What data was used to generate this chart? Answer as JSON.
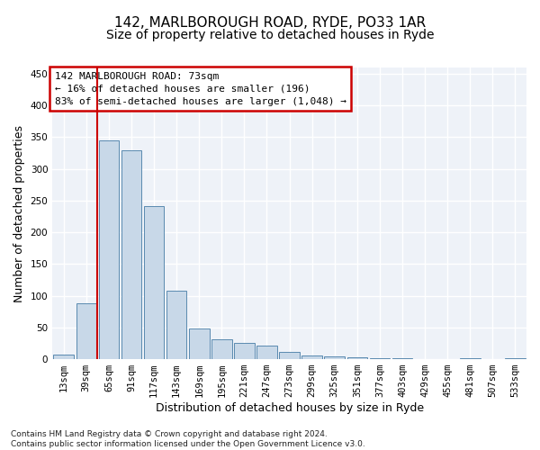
{
  "title_line1": "142, MARLBOROUGH ROAD, RYDE, PO33 1AR",
  "title_line2": "Size of property relative to detached houses in Ryde",
  "xlabel": "Distribution of detached houses by size in Ryde",
  "ylabel": "Number of detached properties",
  "footnote": "Contains HM Land Registry data © Crown copyright and database right 2024.\nContains public sector information licensed under the Open Government Licence v3.0.",
  "bar_labels": [
    "13sqm",
    "39sqm",
    "65sqm",
    "91sqm",
    "117sqm",
    "143sqm",
    "169sqm",
    "195sqm",
    "221sqm",
    "247sqm",
    "273sqm",
    "299sqm",
    "325sqm",
    "351sqm",
    "377sqm",
    "403sqm",
    "429sqm",
    "455sqm",
    "481sqm",
    "507sqm",
    "533sqm"
  ],
  "bar_values": [
    7,
    88,
    345,
    330,
    242,
    108,
    48,
    32,
    25,
    21,
    11,
    6,
    4,
    3,
    2,
    1,
    0,
    0,
    1,
    0,
    2
  ],
  "bar_color": "#c8d8e8",
  "bar_edge_color": "#5a8ab0",
  "background_color": "#eef2f8",
  "grid_color": "#ffffff",
  "vline_x": 1.5,
  "vline_color": "#cc0000",
  "annotation_text": "142 MARLBOROUGH ROAD: 73sqm\n← 16% of detached houses are smaller (196)\n83% of semi-detached houses are larger (1,048) →",
  "annotation_box_color": "#cc0000",
  "ylim": [
    0,
    460
  ],
  "yticks": [
    0,
    50,
    100,
    150,
    200,
    250,
    300,
    350,
    400,
    450
  ],
  "title_fontsize": 11,
  "subtitle_fontsize": 10,
  "axis_label_fontsize": 9,
  "tick_fontsize": 7.5,
  "annotation_fontsize": 8
}
